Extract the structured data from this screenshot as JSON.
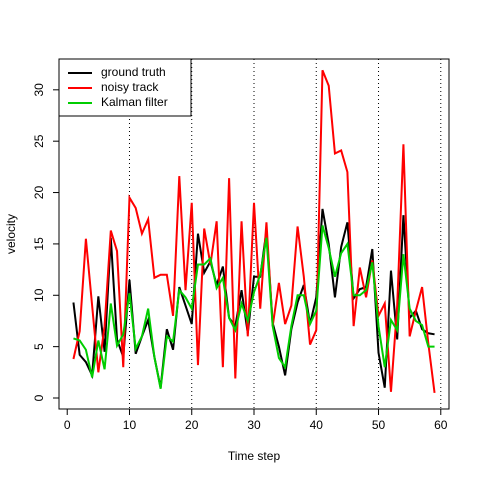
{
  "chart_data": {
    "type": "line",
    "xlabel": "Time step",
    "ylabel": "velocity",
    "x": [
      1,
      2,
      3,
      4,
      5,
      6,
      7,
      8,
      9,
      10,
      11,
      12,
      13,
      14,
      15,
      16,
      17,
      18,
      19,
      20,
      21,
      22,
      23,
      24,
      25,
      26,
      27,
      28,
      29,
      30,
      31,
      32,
      33,
      34,
      35,
      36,
      37,
      38,
      39,
      40,
      41,
      42,
      43,
      44,
      45,
      46,
      47,
      48,
      49,
      50,
      51,
      52,
      53,
      54,
      55,
      56,
      57,
      58,
      59
    ],
    "series": [
      {
        "name": "ground truth",
        "color": "#000000",
        "values": [
          9.3,
          4.2,
          3.5,
          2.2,
          9.9,
          4.5,
          15.6,
          5.7,
          4.0,
          11.5,
          4.3,
          6.0,
          7.6,
          4.0,
          1.0,
          6.7,
          4.7,
          10.8,
          9.0,
          7.2,
          16.0,
          12.2,
          13.3,
          11.0,
          12.8,
          7.8,
          7.0,
          10.5,
          6.3,
          11.8,
          11.8,
          16.3,
          7.3,
          5.0,
          2.2,
          6.7,
          9.3,
          11.0,
          7.2,
          9.8,
          18.4,
          15.0,
          9.8,
          14.7,
          17.1,
          9.7,
          10.6,
          10.8,
          14.5,
          4.4,
          1.0,
          12.4,
          5.7,
          17.8,
          7.8,
          8.5,
          6.7,
          6.3,
          6.2
        ]
      },
      {
        "name": "noisy track",
        "color": "#ff0000",
        "values": [
          3.8,
          6.5,
          15.5,
          9.0,
          2.5,
          7.0,
          16.3,
          14.3,
          3.0,
          19.5,
          18.5,
          16.0,
          17.4,
          11.7,
          12.0,
          12.0,
          8.0,
          21.6,
          10.5,
          19.0,
          3.2,
          16.5,
          13.0,
          17.2,
          3.0,
          21.4,
          1.9,
          17.2,
          6.0,
          19.0,
          8.7,
          17.1,
          7.0,
          11.2,
          7.2,
          9.0,
          16.7,
          11.8,
          5.2,
          6.6,
          31.9,
          30.4,
          23.8,
          24.1,
          22.0,
          7.0,
          12.7,
          9.8,
          13.4,
          8.0,
          9.2,
          0.6,
          9.0,
          24.7,
          6.0,
          8.5,
          10.8,
          5.3,
          0.5
        ]
      },
      {
        "name": "Kalman filter",
        "color": "#00cd00",
        "values": [
          5.8,
          5.6,
          4.7,
          2.0,
          5.6,
          2.8,
          9.2,
          5.1,
          6.2,
          10.2,
          4.8,
          6.0,
          8.7,
          4.0,
          0.9,
          6.0,
          5.5,
          10.5,
          9.8,
          8.7,
          13.0,
          13.0,
          13.6,
          10.7,
          11.7,
          7.8,
          6.6,
          9.2,
          7.5,
          10.3,
          12.0,
          15.6,
          7.0,
          3.9,
          3.0,
          7.0,
          10.0,
          10.0,
          7.2,
          8.5,
          16.8,
          14.6,
          11.8,
          14.1,
          15.0,
          10.0,
          10.0,
          10.5,
          13.2,
          7.0,
          3.0,
          7.6,
          6.6,
          14.0,
          8.7,
          7.5,
          7.1,
          5.0,
          5.0
        ]
      }
    ],
    "xlim": [
      -1.32,
      61.32
    ],
    "xticks": [
      0,
      10,
      20,
      30,
      40,
      50,
      60
    ],
    "ylim": [
      -1.07,
      33.0
    ],
    "yticks": [
      0,
      5,
      10,
      15,
      20,
      25,
      30
    ],
    "vlines": [
      10,
      20,
      30,
      40,
      50,
      60
    ],
    "legend": "topleft"
  }
}
